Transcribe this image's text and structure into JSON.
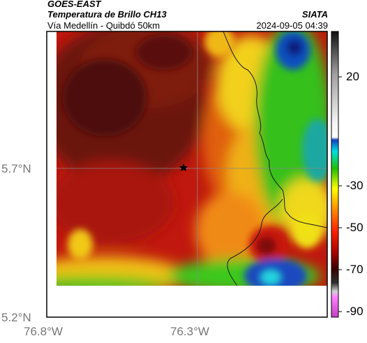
{
  "header": {
    "satellite": "GOES-EAST",
    "product": "Temperatura de Brillo CH13",
    "region": "Vía Medellín - Quibdó 50km",
    "org": "SIATA",
    "timestamp": "2024-09-05 04:39"
  },
  "axes": {
    "lat_ticks": [
      "5.7°N",
      "5.2°N"
    ],
    "lon_ticks": [
      "76.8°W",
      "76.3°W"
    ]
  },
  "colorbar": {
    "labels": [
      "20",
      "-30",
      "-50",
      "-70",
      "-90"
    ]
  },
  "map": {
    "marker": "star-marker",
    "colors": {
      "dark_red": "#5a0f0a",
      "red": "#c81a10",
      "orange": "#f07a10",
      "yellow": "#f2e21a",
      "green": "#33c81a",
      "cyan": "#1ad2d6",
      "blue": "#1036a8",
      "border": "#1a1a1a"
    }
  }
}
